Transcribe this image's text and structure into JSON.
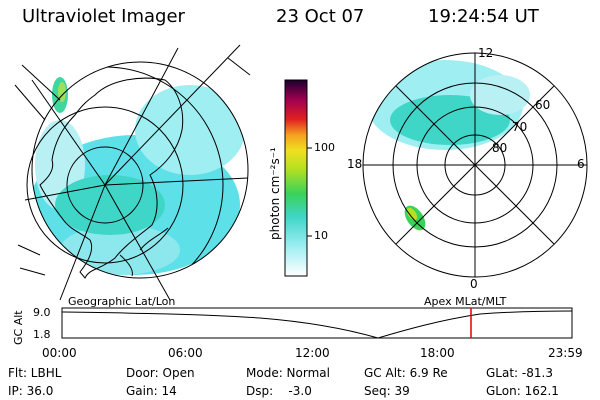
{
  "header": {
    "title": "Ultraviolet Imager",
    "date": "23 Oct 07",
    "time": "19:24:54 UT"
  },
  "colorbar": {
    "unit_label": "photon cm⁻²s⁻¹",
    "ticks": [
      "100",
      "10"
    ]
  },
  "left_map": {
    "caption": "Geographic Lat/Lon"
  },
  "right_map": {
    "caption": "Apex  MLat/MLT",
    "mlt_labels": [
      "12",
      "18",
      "6",
      "0"
    ],
    "mlat_labels": [
      "60",
      "70",
      "80"
    ]
  },
  "timeline": {
    "ylabel": "GC Alt",
    "y_ticks": [
      "9.0",
      "1.8"
    ],
    "x_ticks": [
      "00:00",
      "06:00",
      "12:00",
      "18:00",
      "23:59"
    ],
    "marker_color": "#e00000"
  },
  "info": {
    "filter": "Flt: LBHL",
    "ip": "IP: 36.0",
    "door": "Door: Open",
    "gain": "Gain: 14",
    "mode": "Mode: Normal",
    "dsp": "Dsp:    -3.0",
    "gc_alt": "GC Alt: 6.9 Re",
    "seq": "Seq: 39",
    "glat": "GLat: -81.3",
    "glon": "GLon: 162.1"
  }
}
